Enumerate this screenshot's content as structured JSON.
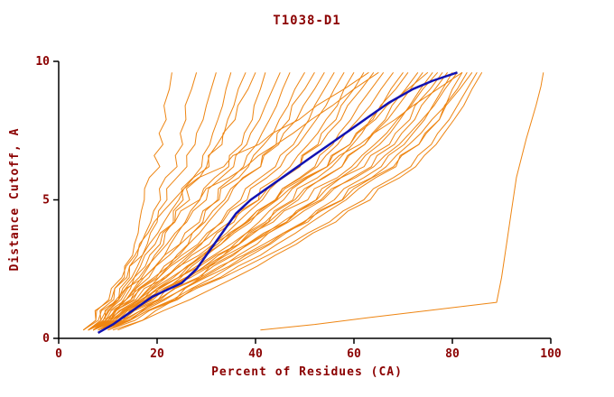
{
  "colors": {
    "text": "#8B0000",
    "axis": "#000000",
    "model_line": "#EE8512",
    "highlight_line": "#1212B2",
    "background": "#FFFFFF"
  },
  "chart_data": {
    "type": "line",
    "title": "T1038-D1",
    "xlabel": "Percent of Residues (CA)",
    "ylabel": "Distance Cutoff, A",
    "xlim": [
      0,
      100
    ],
    "ylim": [
      0,
      10
    ],
    "x_ticks": [
      0,
      20,
      40,
      60,
      80,
      100
    ],
    "y_ticks": [
      0,
      5,
      10
    ],
    "grid": false,
    "legend": "none",
    "series_y_levels": [
      0.3,
      1,
      1.8,
      2.6,
      3.4,
      4.2,
      5,
      5.8,
      6.6,
      7.4,
      8.4,
      9.6
    ],
    "model_series_x": [
      [
        6,
        9,
        12,
        14,
        16,
        17,
        18,
        19,
        20,
        21,
        22,
        23
      ],
      [
        5,
        8,
        11,
        14,
        17,
        19,
        21,
        22,
        24,
        25,
        26,
        28
      ],
      [
        6,
        10,
        13,
        16,
        18,
        20,
        22,
        24,
        26,
        28,
        30,
        32
      ],
      [
        7,
        11,
        15,
        18,
        21,
        23,
        25,
        27,
        29,
        31,
        33,
        35
      ],
      [
        6,
        9,
        13,
        17,
        20,
        23,
        26,
        28,
        30,
        33,
        35,
        38
      ],
      [
        5,
        8,
        12,
        15,
        19,
        22,
        25,
        28,
        31,
        34,
        37,
        40
      ],
      [
        7,
        12,
        16,
        20,
        23,
        26,
        29,
        32,
        35,
        38,
        40,
        42
      ],
      [
        6,
        10,
        14,
        18,
        22,
        26,
        30,
        33,
        36,
        39,
        42,
        45
      ],
      [
        8,
        13,
        18,
        22,
        26,
        29,
        32,
        35,
        38,
        41,
        44,
        47
      ],
      [
        6,
        11,
        15,
        19,
        24,
        28,
        32,
        36,
        39,
        43,
        46,
        50
      ],
      [
        7,
        12,
        17,
        22,
        27,
        31,
        35,
        38,
        42,
        45,
        48,
        52
      ],
      [
        5,
        9,
        14,
        20,
        25,
        30,
        34,
        38,
        42,
        46,
        50,
        54
      ],
      [
        8,
        14,
        19,
        24,
        29,
        33,
        37,
        41,
        45,
        49,
        52,
        56
      ],
      [
        6,
        10,
        16,
        22,
        28,
        33,
        38,
        42,
        46,
        50,
        54,
        58
      ],
      [
        7,
        13,
        18,
        24,
        30,
        35,
        40,
        44,
        48,
        52,
        56,
        60
      ],
      [
        9,
        15,
        21,
        27,
        32,
        37,
        42,
        46,
        50,
        54,
        58,
        62
      ],
      [
        6,
        11,
        17,
        23,
        29,
        35,
        41,
        46,
        50,
        55,
        59,
        64
      ],
      [
        8,
        14,
        20,
        26,
        33,
        39,
        44,
        49,
        53,
        57,
        61,
        66
      ],
      [
        7,
        12,
        19,
        26,
        32,
        38,
        44,
        49,
        54,
        58,
        63,
        68
      ],
      [
        9,
        16,
        23,
        29,
        36,
        42,
        47,
        52,
        57,
        61,
        65,
        70
      ],
      [
        6,
        12,
        18,
        25,
        32,
        39,
        45,
        51,
        56,
        61,
        66,
        71
      ],
      [
        8,
        15,
        22,
        30,
        37,
        43,
        49,
        54,
        59,
        64,
        68,
        73
      ],
      [
        7,
        13,
        20,
        28,
        35,
        42,
        48,
        54,
        59,
        64,
        69,
        74
      ],
      [
        9,
        17,
        25,
        33,
        40,
        46,
        52,
        57,
        62,
        67,
        71,
        76
      ],
      [
        6,
        12,
        20,
        28,
        36,
        43,
        50,
        56,
        61,
        66,
        71,
        77
      ],
      [
        8,
        16,
        24,
        32,
        39,
        46,
        53,
        58,
        64,
        69,
        73,
        78
      ],
      [
        7,
        14,
        22,
        31,
        39,
        47,
        54,
        60,
        65,
        70,
        74,
        79
      ],
      [
        9,
        18,
        27,
        35,
        43,
        50,
        56,
        62,
        67,
        72,
        76,
        80
      ],
      [
        6,
        13,
        21,
        30,
        38,
        46,
        53,
        60,
        66,
        71,
        76,
        81
      ],
      [
        8,
        16,
        25,
        34,
        42,
        50,
        57,
        63,
        68,
        73,
        78,
        82
      ],
      [
        10,
        19,
        28,
        37,
        45,
        52,
        59,
        65,
        70,
        75,
        79,
        83
      ],
      [
        7,
        15,
        24,
        33,
        42,
        50,
        58,
        64,
        70,
        75,
        79,
        84
      ],
      [
        9,
        18,
        28,
        38,
        47,
        55,
        62,
        68,
        73,
        77,
        81,
        85
      ],
      [
        11,
        21,
        31,
        40,
        48,
        56,
        63,
        69,
        74,
        78,
        82,
        86
      ],
      [
        6,
        11,
        14,
        16,
        19,
        23,
        28,
        34,
        40,
        47,
        55,
        65
      ],
      [
        7,
        10,
        13,
        15,
        17,
        20,
        24,
        29,
        36,
        44,
        53,
        63
      ],
      [
        12,
        20,
        26,
        31,
        36,
        41,
        46,
        51,
        56,
        61,
        67,
        75
      ],
      [
        10,
        17,
        22,
        27,
        33,
        38,
        44,
        50,
        57,
        64,
        72,
        82
      ]
    ],
    "outlier_series": [
      [
        41,
        0.3
      ],
      [
        52,
        0.5
      ],
      [
        63,
        0.75
      ],
      [
        75,
        1.0
      ],
      [
        89,
        1.3
      ],
      [
        90,
        2.2
      ],
      [
        91,
        3.4
      ],
      [
        92,
        4.6
      ],
      [
        93,
        5.8
      ],
      [
        95,
        7.2
      ],
      [
        97,
        8.4
      ],
      [
        98,
        9.1
      ],
      [
        98.5,
        9.6
      ]
    ],
    "highlight_series": [
      [
        8,
        0.2
      ],
      [
        11,
        0.5
      ],
      [
        15,
        1
      ],
      [
        19,
        1.5
      ],
      [
        25,
        2
      ],
      [
        28,
        2.5
      ],
      [
        30,
        3
      ],
      [
        32,
        3.5
      ],
      [
        34,
        4
      ],
      [
        36,
        4.5
      ],
      [
        39,
        5
      ],
      [
        43,
        5.5
      ],
      [
        47,
        6
      ],
      [
        51,
        6.5
      ],
      [
        55,
        7
      ],
      [
        59,
        7.5
      ],
      [
        63,
        8
      ],
      [
        67,
        8.5
      ],
      [
        72,
        9
      ],
      [
        76,
        9.3
      ],
      [
        81,
        9.6
      ]
    ]
  }
}
